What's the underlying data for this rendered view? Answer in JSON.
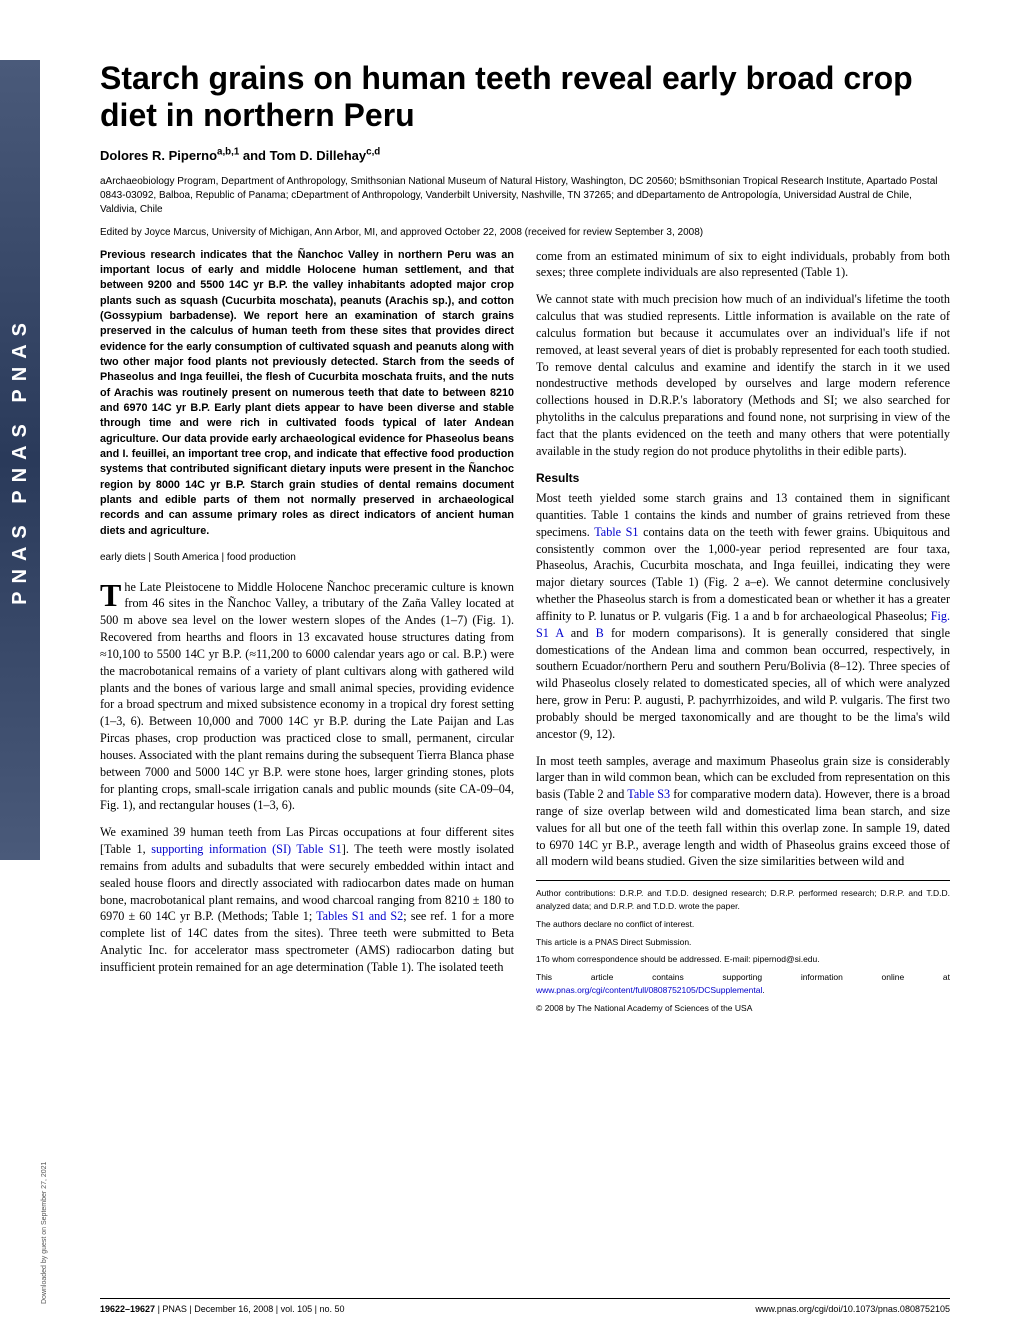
{
  "journal_strip": "PNAS PNAS PNAS",
  "title": "Starch grains on human teeth reveal early broad crop diet in northern Peru",
  "authors": "Dolores R. Pipernoa,b,1 and Tom D. Dillehayc,d",
  "affiliations": "aArchaeobiology Program, Department of Anthropology, Smithsonian National Museum of Natural History, Washington, DC 20560; bSmithsonian Tropical Research Institute, Apartado Postal 0843-03092, Balboa, Republic of Panama; cDepartment of Anthropology, Vanderbilt University, Nashville, TN 37265; and dDepartamento de Antropología, Universidad Austral de Chile, Valdivia, Chile",
  "edited_by": "Edited by Joyce Marcus, University of Michigan, Ann Arbor, MI, and approved October 22, 2008 (received for review September 3, 2008)",
  "abstract": "Previous research indicates that the Ñanchoc Valley in northern Peru was an important locus of early and middle Holocene human settlement, and that between 9200 and 5500 14C yr B.P. the valley inhabitants adopted major crop plants such as squash (Cucurbita moschata), peanuts (Arachis sp.), and cotton (Gossypium barbadense). We report here an examination of starch grains preserved in the calculus of human teeth from these sites that provides direct evidence for the early consumption of cultivated squash and peanuts along with two other major food plants not previously detected. Starch from the seeds of Phaseolus and Inga feuillei, the flesh of Cucurbita moschata fruits, and the nuts of Arachis was routinely present on numerous teeth that date to between 8210 and 6970 14C yr B.P. Early plant diets appear to have been diverse and stable through time and were rich in cultivated foods typical of later Andean agriculture. Our data provide early archaeological evidence for Phaseolus beans and I. feuillei, an important tree crop, and indicate that effective food production systems that contributed significant dietary inputs were present in the Ñanchoc region by 8000 14C yr B.P. Starch grain studies of dental remains document plants and edible parts of them not normally preserved in archaeological records and can assume primary roles as direct indicators of ancient human diets and agriculture.",
  "keywords": "early diets | South America | food production",
  "para1_start": "T",
  "para1": "he Late Pleistocene to Middle Holocene Ñanchoc preceramic culture is known from 46 sites in the Ñanchoc Valley, a tributary of the Zaña Valley located at 500 m above sea level on the lower western slopes of the Andes (1–7) (Fig. 1). Recovered from hearths and floors in 13 excavated house structures dating from ≈10,100 to 5500 14C yr B.P. (≈11,200 to 6000 calendar years ago or cal. B.P.) were the macrobotanical remains of a variety of plant cultivars along with gathered wild plants and the bones of various large and small animal species, providing evidence for a broad spectrum and mixed subsistence economy in a tropical dry forest setting (1–3, 6). Between 10,000 and 7000 14C yr B.P. during the Late Paijan and Las Pircas phases, crop production was practiced close to small, permanent, circular houses. Associated with the plant remains during the subsequent Tierra Blanca phase between 7000 and 5000 14C yr B.P. were stone hoes, larger grinding stones, plots for planting crops, small-scale irrigation canals and public mounds (site CA-09–04, Fig. 1), and rectangular houses (1–3, 6).",
  "para2a": "We examined 39 human teeth from Las Pircas occupations at four different sites [Table 1, ",
  "para2_link": "supporting information (SI) Table S1",
  "para2b": "]. The teeth were mostly isolated remains from adults and subadults that were securely embedded within intact and sealed house floors and directly associated with radiocarbon dates made on human bone, macrobotanical plant remains, and wood charcoal ranging from 8210 ± 180 to 6970 ± 60 14C yr B.P. (Methods; Table 1; ",
  "para2_link2": "Tables S1 and S2",
  "para2c": "; see ref. 1 for a more complete list of 14C dates from the sites). Three teeth were submitted to Beta Analytic Inc. for accelerator mass spectrometer (AMS) radiocarbon dating but insufficient protein remained for an age determination (Table 1). The isolated teeth",
  "para3": "come from an estimated minimum of six to eight individuals, probably from both sexes; three complete individuals are also represented (Table 1).",
  "para4": "We cannot state with much precision how much of an individual's lifetime the tooth calculus that was studied represents. Little information is available on the rate of calculus formation but because it accumulates over an individual's life if not removed, at least several years of diet is probably represented for each tooth studied. To remove dental calculus and examine and identify the starch in it we used nondestructive methods developed by ourselves and large modern reference collections housed in D.R.P.'s laboratory (Methods and SI; we also searched for phytoliths in the calculus preparations and found none, not surprising in view of the fact that the plants evidenced on the teeth and many others that were potentially available in the study region do not produce phytoliths in their edible parts).",
  "results_head": "Results",
  "para5a": "Most teeth yielded some starch grains and 13 contained them in significant quantities. Table 1 contains the kinds and number of grains retrieved from these specimens. ",
  "para5_link": "Table S1",
  "para5b": " contains data on the teeth with fewer grains. Ubiquitous and consistently common over the 1,000-year period represented are four taxa, Phaseolus, Arachis, Cucurbita moschata, and Inga feuillei, indicating they were major dietary sources (Table 1) (Fig. 2 a–e). We cannot determine conclusively whether the Phaseolus starch is from a domesticated bean or whether it has a greater affinity to P. lunatus or P. vulgaris (Fig. 1 a and b for archaeological Phaseolus; ",
  "para5_link2": "Fig. S1 A",
  "para5c": " and ",
  "para5_link3": "B",
  "para5d": " for modern comparisons). It is generally considered that single domestications of the Andean lima and common bean occurred, respectively, in southern Ecuador/northern Peru and southern Peru/Bolivia (8–12). Three species of wild Phaseolus closely related to domesticated species, all of which were analyzed here, grow in Peru: P. augusti, P. pachyrrhizoides, and wild P. vulgaris. The first two probably should be merged taxonomically and are thought to be the lima's wild ancestor (9, 12).",
  "para6a": "In most teeth samples, average and maximum Phaseolus grain size is considerably larger than in wild common bean, which can be excluded from representation on this basis (Table 2 and ",
  "para6_link": "Table S3",
  "para6b": " for comparative modern data). However, there is a broad range of size overlap between wild and domesticated lima bean starch, and size values for all but one of the teeth fall within this overlap zone. In sample 19, dated to 6970 14C yr B.P., average length and width of Phaseolus grains exceed those of all modern wild beans studied. Given the size similarities between wild and",
  "author_contrib": "Author contributions: D.R.P. and T.D.D. designed research; D.R.P. performed research; D.R.P. and T.D.D. analyzed data; and D.R.P. and T.D.D. wrote the paper.",
  "conflict": "The authors declare no conflict of interest.",
  "submission": "This article is a PNAS Direct Submission.",
  "correspondence": "1To whom correspondence should be addressed. E-mail: pipernod@si.edu.",
  "si_note_a": "This article contains supporting information online at ",
  "si_link": "www.pnas.org/cgi/content/full/0808752105/DCSupplemental",
  "si_note_b": ".",
  "copyright": "© 2008 by The National Academy of Sciences of the USA",
  "footer_left_pages": "19622–19627",
  "footer_left_rest": " | PNAS | December 16, 2008 | vol. 105 | no. 50",
  "footer_right": "www.pnas.org/cgi/doi/10.1073/pnas.0808752105",
  "download_note": "Downloaded by guest on September 27, 2021"
}
